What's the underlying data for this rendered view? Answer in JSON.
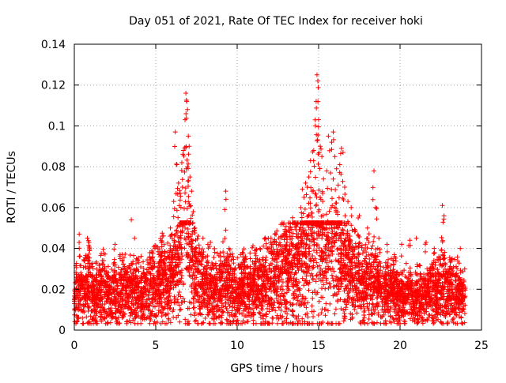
{
  "chart_data": {
    "type": "scatter",
    "title": "Day 051 of 2021, Rate Of TEC Index for receiver hoki",
    "xlabel": "GPS time / hours",
    "ylabel": "ROTI / TECUs",
    "xlim": [
      0,
      25
    ],
    "ylim": [
      0,
      0.14
    ],
    "x_ticks": [
      0,
      5,
      10,
      15,
      20,
      25
    ],
    "y_ticks": [
      0,
      0.02,
      0.04,
      0.06,
      0.08,
      0.1,
      0.12,
      0.14
    ],
    "x_tick_labels": [
      "0",
      "5",
      "10",
      "15",
      "20",
      "25"
    ],
    "y_tick_labels": [
      "0",
      "0.02",
      "0.04",
      "0.06",
      "0.08",
      "0.1",
      "0.12",
      "0.14"
    ],
    "grid": true,
    "marker": "+",
    "marker_color": "#ff0000",
    "series": [
      {
        "x": [
          0.0,
          0.3,
          0.6,
          0.9,
          1.2,
          1.5,
          1.8,
          2.1,
          2.4,
          2.7,
          3.0,
          3.3,
          3.6,
          3.9,
          4.2,
          4.5,
          4.8,
          5.1,
          5.4,
          5.7,
          6.0,
          6.2,
          6.4,
          6.6,
          6.8,
          7.0,
          7.2,
          7.4,
          7.7,
          8.0,
          8.3,
          8.6,
          8.9,
          9.2,
          9.5,
          9.8,
          10.1,
          10.4,
          10.7,
          11.0,
          11.3,
          11.6,
          11.9,
          12.2,
          12.5,
          12.8,
          13.1,
          13.4,
          13.7,
          14.0,
          14.2,
          14.4,
          14.6,
          14.8,
          15.0,
          15.2,
          15.4,
          15.6,
          15.8,
          16.0,
          16.2,
          16.4,
          16.6,
          16.9,
          17.2,
          17.5,
          17.8,
          18.1,
          18.4,
          18.7,
          19.0,
          19.3,
          19.6,
          19.9,
          20.2,
          20.5,
          20.8,
          21.1,
          21.4,
          21.7,
          22.0,
          22.3,
          22.6,
          22.9,
          23.2,
          23.5,
          23.8
        ],
        "y": [
          0.015,
          0.02,
          0.018,
          0.022,
          0.016,
          0.019,
          0.021,
          0.017,
          0.02,
          0.018,
          0.022,
          0.016,
          0.019,
          0.021,
          0.018,
          0.02,
          0.023,
          0.021,
          0.025,
          0.022,
          0.026,
          0.028,
          0.032,
          0.04,
          0.05,
          0.045,
          0.03,
          0.025,
          0.022,
          0.02,
          0.023,
          0.021,
          0.019,
          0.024,
          0.022,
          0.02,
          0.018,
          0.021,
          0.019,
          0.022,
          0.02,
          0.023,
          0.025,
          0.024,
          0.026,
          0.028,
          0.03,
          0.032,
          0.035,
          0.037,
          0.036,
          0.04,
          0.048,
          0.052,
          0.058,
          0.045,
          0.038,
          0.042,
          0.05,
          0.047,
          0.04,
          0.035,
          0.032,
          0.028,
          0.026,
          0.024,
          0.022,
          0.025,
          0.023,
          0.021,
          0.02,
          0.018,
          0.02,
          0.017,
          0.016,
          0.018,
          0.015,
          0.017,
          0.016,
          0.018,
          0.02,
          0.019,
          0.021,
          0.018,
          0.02,
          0.019,
          0.017
        ],
        "cloud_low": 0.004,
        "cloud_high": 0.035
      },
      {
        "x": [
          0.3,
          0.8,
          0.9,
          2.5,
          3.5,
          3.7,
          5.4,
          5.9,
          6.1,
          6.2,
          6.3,
          6.4,
          6.5,
          6.6,
          6.7,
          6.8,
          6.85,
          6.9,
          6.95,
          7.0,
          7.05,
          7.1,
          7.2,
          7.3,
          7.4,
          7.6,
          7.9,
          8.2,
          9.3,
          9.5,
          10.2,
          10.8,
          11.4,
          12.4,
          13.0,
          13.4,
          13.7,
          13.9,
          14.0,
          14.1,
          14.2,
          14.3,
          14.4,
          14.5,
          14.6,
          14.7,
          14.8,
          14.85,
          14.9,
          14.95,
          15.0,
          15.1,
          15.2,
          15.3,
          15.5,
          15.6,
          15.8,
          15.9,
          16.0,
          16.1,
          16.2,
          16.3,
          16.4,
          16.5,
          16.6,
          16.8,
          17.0,
          17.5,
          18.0,
          18.4,
          18.5,
          18.7,
          19.2,
          20.1,
          20.6,
          21.0,
          21.6,
          22.1,
          22.6,
          22.7,
          23.2,
          23.7
        ],
        "y": [
          0.047,
          0.045,
          0.043,
          0.042,
          0.054,
          0.045,
          0.046,
          0.05,
          0.063,
          0.097,
          0.081,
          0.072,
          0.067,
          0.082,
          0.088,
          0.103,
          0.116,
          0.112,
          0.108,
          0.095,
          0.09,
          0.075,
          0.068,
          0.058,
          0.05,
          0.046,
          0.045,
          0.042,
          0.068,
          0.04,
          0.037,
          0.035,
          0.04,
          0.043,
          0.047,
          0.055,
          0.052,
          0.06,
          0.069,
          0.065,
          0.072,
          0.07,
          0.075,
          0.083,
          0.068,
          0.088,
          0.1,
          0.112,
          0.125,
          0.122,
          0.103,
          0.09,
          0.085,
          0.074,
          0.078,
          0.095,
          0.092,
          0.097,
          0.085,
          0.079,
          0.071,
          0.081,
          0.089,
          0.087,
          0.07,
          0.063,
          0.06,
          0.056,
          0.05,
          0.078,
          0.06,
          0.045,
          0.042,
          0.042,
          0.044,
          0.045,
          0.043,
          0.04,
          0.061,
          0.056,
          0.035,
          0.04
        ]
      }
    ]
  }
}
